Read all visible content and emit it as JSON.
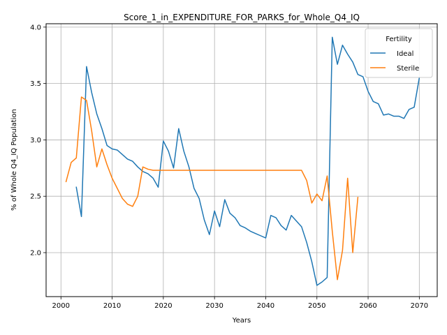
{
  "chart_data": {
    "type": "line",
    "title": "Score_1_in_EXPENDITURE_FOR_PARKS_for_Whole_Q4_IQ",
    "xlabel": "Years",
    "ylabel": "% of Whole Q4_IQ Population",
    "xlim": [
      1997.1,
      2073.5
    ],
    "ylim": [
      1.61,
      4.03
    ],
    "xticks": [
      2000,
      2010,
      2020,
      2030,
      2040,
      2050,
      2060,
      2070
    ],
    "yticks": [
      2.0,
      2.5,
      3.0,
      3.5,
      4.0
    ],
    "xtick_labels": [
      "2000",
      "2010",
      "2020",
      "2030",
      "2040",
      "2050",
      "2060",
      "2070"
    ],
    "ytick_labels": [
      "2.0",
      "2.5",
      "3.0",
      "3.5",
      "4.0"
    ],
    "grid": true,
    "legend": {
      "title": "Fertility",
      "position": "top-right"
    },
    "series": [
      {
        "name": "Ideal",
        "color": "#1f77b4",
        "x": [
          2003,
          2004,
          2005,
          2006,
          2007,
          2008,
          2009,
          2010,
          2011,
          2012,
          2013,
          2014,
          2015,
          2016,
          2017,
          2018,
          2019,
          2020,
          2021,
          2022,
          2023,
          2024,
          2025,
          2026,
          2027,
          2028,
          2029,
          2030,
          2031,
          2032,
          2033,
          2034,
          2035,
          2036,
          2037,
          2038,
          2039,
          2040,
          2041,
          2042,
          2043,
          2044,
          2045,
          2046,
          2047,
          2048,
          2049,
          2050,
          2051,
          2052,
          2053,
          2054,
          2055,
          2056,
          2057,
          2058,
          2059,
          2060,
          2061,
          2062,
          2063,
          2064,
          2065,
          2066,
          2067,
          2068,
          2069,
          2070
        ],
        "y": [
          2.58,
          2.32,
          3.65,
          3.42,
          3.23,
          3.1,
          2.95,
          2.92,
          2.91,
          2.87,
          2.83,
          2.81,
          2.76,
          2.72,
          2.7,
          2.66,
          2.58,
          2.99,
          2.9,
          2.75,
          3.1,
          2.9,
          2.76,
          2.57,
          2.48,
          2.29,
          2.16,
          2.37,
          2.23,
          2.47,
          2.35,
          2.31,
          2.24,
          2.22,
          2.19,
          2.17,
          2.15,
          2.13,
          2.33,
          2.31,
          2.24,
          2.2,
          2.33,
          2.28,
          2.23,
          2.09,
          1.92,
          1.71,
          1.74,
          1.78,
          3.91,
          3.67,
          3.84,
          3.76,
          3.69,
          3.58,
          3.56,
          3.43,
          3.34,
          3.32,
          3.22,
          3.23,
          3.21,
          3.21,
          3.19,
          3.27,
          3.29,
          3.55
        ]
      },
      {
        "name": "Sterile",
        "color": "#ff7f0e",
        "x": [
          2001,
          2002,
          2003,
          2004,
          2005,
          2006,
          2007,
          2008,
          2009,
          2010,
          2011,
          2012,
          2013,
          2014,
          2015,
          2016,
          2017,
          2018,
          2019,
          2020,
          2021,
          2022,
          2023,
          2024,
          2025,
          2026,
          2027,
          2028,
          2029,
          2030,
          2031,
          2032,
          2033,
          2034,
          2035,
          2036,
          2037,
          2038,
          2039,
          2040,
          2041,
          2042,
          2043,
          2044,
          2045,
          2046,
          2047,
          2048,
          2049,
          2050,
          2051,
          2052,
          2053,
          2054,
          2055,
          2056,
          2057,
          2058
        ],
        "y": [
          2.63,
          2.8,
          2.84,
          3.38,
          3.35,
          3.08,
          2.76,
          2.92,
          2.78,
          2.66,
          2.57,
          2.48,
          2.43,
          2.41,
          2.5,
          2.76,
          2.74,
          2.73,
          2.73,
          2.73,
          2.73,
          2.73,
          2.73,
          2.73,
          2.73,
          2.73,
          2.73,
          2.73,
          2.73,
          2.73,
          2.73,
          2.73,
          2.73,
          2.73,
          2.73,
          2.73,
          2.73,
          2.73,
          2.73,
          2.73,
          2.73,
          2.73,
          2.73,
          2.73,
          2.73,
          2.73,
          2.73,
          2.64,
          2.44,
          2.52,
          2.46,
          2.68,
          2.19,
          1.76,
          2.02,
          2.66,
          2.0,
          2.49
        ]
      }
    ]
  }
}
